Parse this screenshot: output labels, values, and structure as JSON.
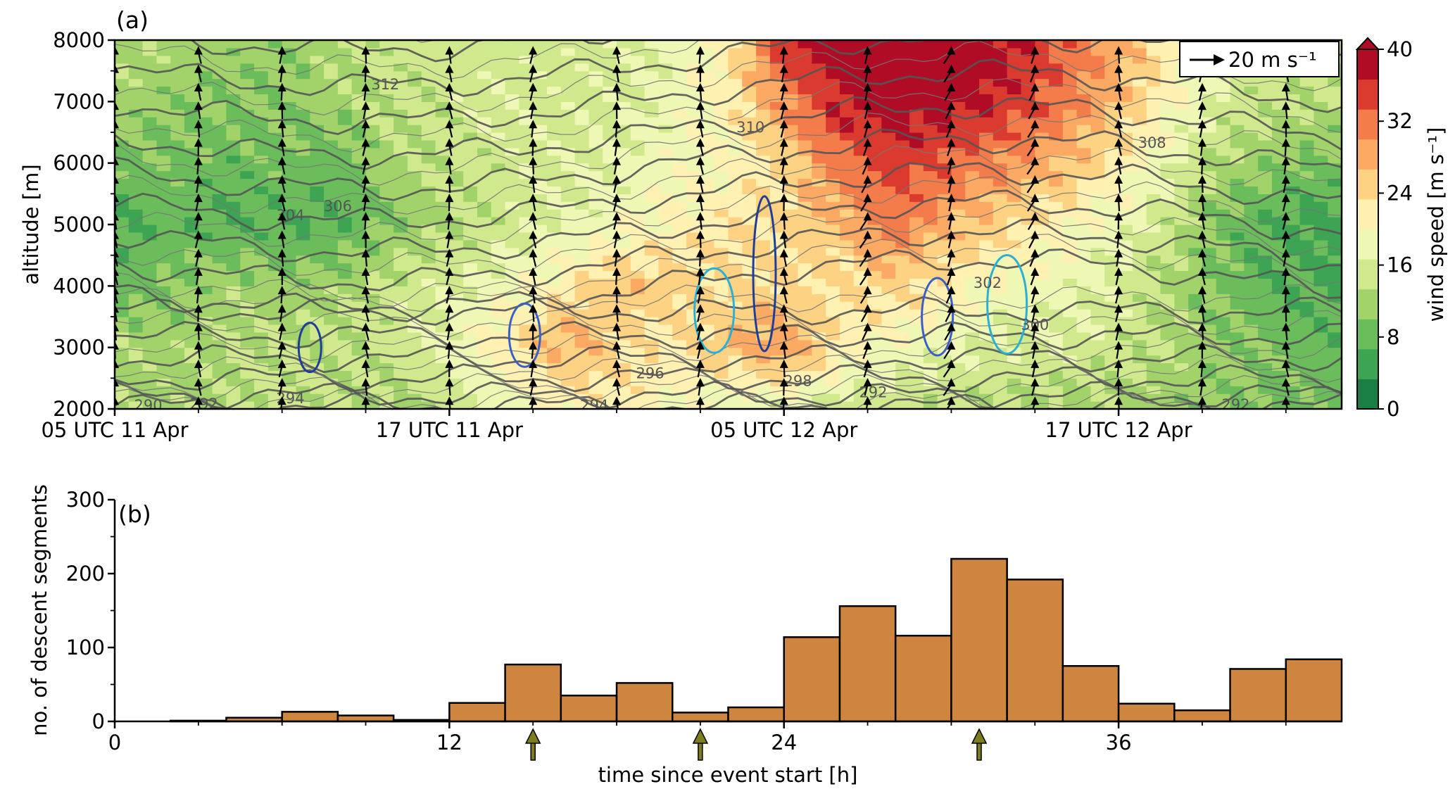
{
  "chart_data": [
    {
      "panel": "(a)",
      "type": "heatmap",
      "ylabel": "altitude [m]",
      "ylim": [
        2000,
        8000
      ],
      "yticks": [
        "2000",
        "3000",
        "4000",
        "5000",
        "6000",
        "7000",
        "8000"
      ],
      "xtick_labels": [
        "05 UTC 11 Apr",
        "17 UTC 11 Apr",
        "05 UTC 12 Apr",
        "17 UTC 12 Apr"
      ],
      "xtick_hours": [
        0,
        12,
        24,
        36
      ],
      "colorbar": {
        "label": "wind speed [m s⁻¹]",
        "ticks": [
          "0",
          "8",
          "16",
          "24",
          "32",
          "40"
        ],
        "min": 0,
        "max": 40,
        "colors": [
          "#1a7f43",
          "#3ca452",
          "#6bbc5b",
          "#a2d36b",
          "#cfe98c",
          "#eff7b5",
          "#fff1b2",
          "#fed283",
          "#fba963",
          "#f47b4a",
          "#db3b2e",
          "#b00c26"
        ]
      },
      "quiver_key": "20 m s⁻¹",
      "isentrope_labels": [
        "290",
        "292",
        "294",
        "294",
        "296",
        "298",
        "300",
        "302",
        "304",
        "306",
        "308",
        "310",
        "312",
        "292",
        "292"
      ],
      "wind_speed_grid": {
        "hours": [
          0,
          2,
          4,
          6,
          8,
          10,
          12,
          14,
          16,
          18,
          20,
          22,
          24,
          26,
          28,
          30,
          32,
          34,
          36,
          38,
          40,
          42,
          44
        ],
        "altitudes": [
          2000,
          3000,
          4000,
          5000,
          6000,
          7000,
          8000
        ],
        "values": [
          [
            12,
            12,
            13,
            15,
            13,
            12,
            14,
            18,
            20,
            22,
            20,
            18,
            17,
            15,
            14,
            14,
            13,
            12,
            12,
            11,
            10,
            9,
            9
          ],
          [
            13,
            12,
            13,
            14,
            14,
            15,
            18,
            22,
            28,
            24,
            22,
            26,
            30,
            22,
            19,
            17,
            16,
            16,
            15,
            13,
            11,
            9,
            8
          ],
          [
            8,
            10,
            12,
            11,
            12,
            15,
            16,
            19,
            22,
            26,
            25,
            24,
            24,
            23,
            25,
            22,
            19,
            18,
            16,
            12,
            9,
            7,
            5
          ],
          [
            6,
            8,
            7,
            7,
            7,
            10,
            13,
            15,
            17,
            19,
            21,
            23,
            24,
            26,
            32,
            27,
            24,
            21,
            18,
            14,
            8,
            6,
            5
          ],
          [
            9,
            9,
            8,
            9,
            8,
            12,
            14,
            15,
            16,
            17,
            19,
            20,
            24,
            32,
            35,
            33,
            30,
            27,
            22,
            17,
            12,
            10,
            9
          ],
          [
            12,
            11,
            10,
            10,
            12,
            14,
            15,
            16,
            15,
            16,
            18,
            22,
            30,
            37,
            39,
            38,
            36,
            32,
            27,
            20,
            15,
            14,
            13
          ],
          [
            13,
            12,
            12,
            11,
            13,
            15,
            15,
            15,
            15,
            16,
            17,
            22,
            36,
            40,
            40,
            40,
            38,
            33,
            28,
            22,
            16,
            15,
            15
          ]
        ]
      }
    },
    {
      "panel": "(b)",
      "type": "bar",
      "xlabel": "time since event start [h]",
      "ylabel": "no. of descent segments",
      "xlim": [
        0,
        44
      ],
      "ylim": [
        0,
        300
      ],
      "xticks": [
        "0",
        "12",
        "24",
        "36"
      ],
      "yticks": [
        "0",
        "100",
        "200",
        "300"
      ],
      "bin_width": 2,
      "bin_starts": [
        0,
        2,
        4,
        6,
        8,
        10,
        12,
        14,
        16,
        18,
        20,
        22,
        24,
        26,
        28,
        30,
        32,
        34,
        36,
        38,
        40,
        42
      ],
      "values": [
        0,
        1,
        5,
        13,
        8,
        2,
        25,
        77,
        35,
        52,
        12,
        19,
        114,
        156,
        116,
        220,
        192,
        75,
        24,
        15,
        71,
        84
      ],
      "bar_color": "#cd853f",
      "arrow_hours": [
        15,
        21,
        31
      ],
      "arrow_color": "#7d7d1a"
    }
  ]
}
